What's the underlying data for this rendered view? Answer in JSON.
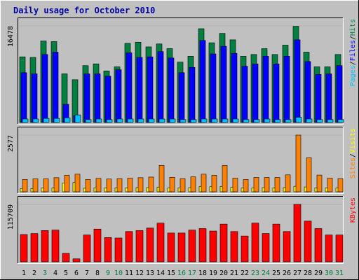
{
  "title": "Daily usage for October 2010",
  "colors": {
    "background": "#c0c0c0",
    "title": "#0000a0",
    "hits": "#008040",
    "files": "#0000ff",
    "pages": "#00c0ff",
    "visits": "#ffff00",
    "sites": "#ff8000",
    "kbytes": "#ff0000",
    "weekend_label": "#008040",
    "weekday_label": "#000000"
  },
  "chart_data": [
    {
      "type": "bar",
      "panel": "hits-files-pages",
      "ymax_label": "16478",
      "ylim": [
        0,
        16478
      ],
      "legend": [
        "Pages",
        "/",
        "Files",
        "/",
        "Hits"
      ],
      "categories": [
        "1",
        "2",
        "3",
        "4",
        "5",
        "6",
        "7",
        "8",
        "9",
        "10",
        "11",
        "12",
        "13",
        "14",
        "15",
        "16",
        "17",
        "18",
        "19",
        "20",
        "21",
        "22",
        "23",
        "24",
        "25",
        "26",
        "27",
        "28",
        "29",
        "30",
        "31"
      ],
      "weekend_days": [
        3,
        9,
        10,
        16,
        17,
        23,
        24,
        30,
        31
      ],
      "series": [
        {
          "name": "Hits",
          "values": [
            11200,
            11100,
            13900,
            13800,
            8300,
            7300,
            9700,
            10000,
            8800,
            9500,
            13500,
            13700,
            12900,
            13400,
            12600,
            10300,
            11300,
            16000,
            13600,
            15200,
            14100,
            11300,
            11600,
            12600,
            11600,
            13200,
            16400,
            12000,
            9500,
            9500,
            11600
          ]
        },
        {
          "name": "Files",
          "values": [
            8500,
            8300,
            11600,
            12000,
            3100,
            1200,
            8300,
            8300,
            7900,
            9000,
            11900,
            11100,
            11200,
            12100,
            11000,
            8500,
            9400,
            14000,
            11700,
            13000,
            11800,
            9600,
            10000,
            11300,
            10000,
            11300,
            14100,
            10400,
            8200,
            8300,
            9700
          ]
        },
        {
          "name": "Pages",
          "values": [
            600,
            600,
            700,
            700,
            800,
            1300,
            500,
            600,
            500,
            600,
            600,
            600,
            600,
            600,
            600,
            500,
            500,
            600,
            600,
            600,
            600,
            500,
            500,
            600,
            500,
            500,
            900,
            600,
            500,
            500,
            500
          ]
        }
      ]
    },
    {
      "type": "bar",
      "panel": "visits-sites",
      "ymax_label": "2577",
      "ylim": [
        0,
        2577
      ],
      "legend": [
        "Sites",
        "/",
        "Visits"
      ],
      "series": [
        {
          "name": "Sites",
          "values": [
            560,
            590,
            590,
            640,
            750,
            800,
            560,
            610,
            580,
            600,
            620,
            640,
            670,
            1200,
            660,
            600,
            680,
            800,
            750,
            1200,
            620,
            560,
            650,
            650,
            650,
            770,
            2577,
            1550,
            760,
            620,
            600
          ]
        },
        {
          "name": "Visits",
          "values": [
            150,
            150,
            170,
            180,
            390,
            420,
            160,
            180,
            180,
            180,
            180,
            190,
            190,
            210,
            180,
            180,
            190,
            240,
            230,
            240,
            200,
            170,
            180,
            190,
            180,
            190,
            250,
            220,
            180,
            180,
            180
          ]
        }
      ]
    },
    {
      "type": "bar",
      "panel": "kbytes",
      "ymax_label": "115709",
      "ylim": [
        0,
        115709
      ],
      "legend": [
        "KBytes"
      ],
      "series": [
        {
          "name": "KBytes",
          "values": [
            55000,
            57000,
            63000,
            64000,
            17000,
            6000,
            54000,
            66000,
            49000,
            48000,
            61000,
            63000,
            68000,
            78000,
            58000,
            58000,
            64000,
            67000,
            62000,
            76000,
            61000,
            52000,
            78000,
            57000,
            76000,
            61000,
            115709,
            82000,
            67000,
            54000,
            54000
          ]
        }
      ]
    }
  ]
}
